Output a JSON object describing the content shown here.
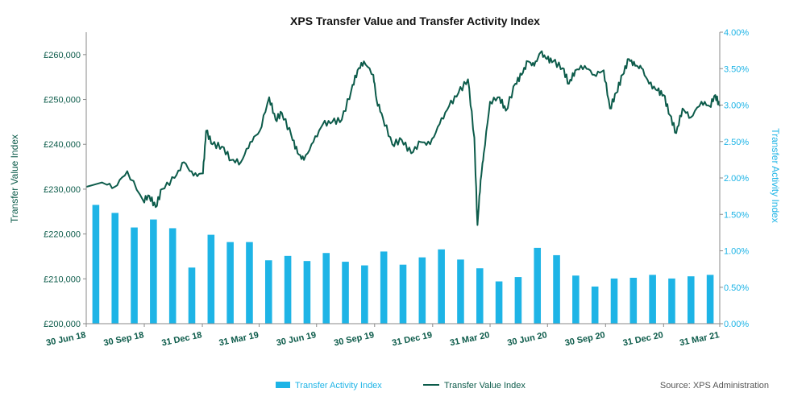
{
  "chart_data": {
    "type": "bar+line",
    "title": "XPS Transfer Value and Transfer Activity Index",
    "left_axis": {
      "label": "Transfer Value Index",
      "ylim": [
        200000,
        265000
      ],
      "ticks": [
        200000,
        210000,
        220000,
        230000,
        240000,
        250000,
        260000
      ],
      "tick_labels": [
        "£200,000",
        "£210,000",
        "£220,000",
        "£230,000",
        "£240,000",
        "£250,000",
        "£260,000"
      ]
    },
    "right_axis": {
      "label": "Transfer Activity Index",
      "ylim": [
        0.0,
        4.0
      ],
      "ticks": [
        0.0,
        0.5,
        1.0,
        1.5,
        2.0,
        2.5,
        3.0,
        3.5,
        4.0
      ],
      "tick_labels": [
        "0.00%",
        "0.50%",
        "1.00%",
        "1.50%",
        "2.00%",
        "2.50%",
        "3.00%",
        "3.50%",
        "4.00%"
      ]
    },
    "x_axis": {
      "range": [
        0,
        1004
      ],
      "ticks": [
        0,
        92,
        184,
        274,
        365,
        457,
        549,
        640,
        731,
        823,
        915,
        1004
      ],
      "tick_labels": [
        "30 Jun 18",
        "30 Sep 18",
        "31 Dec 18",
        "31 Mar 19",
        "30 Jun 19",
        "30 Sep 19",
        "31 Dec 19",
        "31 Mar 20",
        "30 Jun 20",
        "30 Sep 20",
        "31 Dec 20",
        "31 Mar 21"
      ]
    },
    "bar_series": {
      "name": "Transfer Activity Index",
      "color": "#1eb4e6",
      "values": [
        1.63,
        1.52,
        1.32,
        1.43,
        1.31,
        0.77,
        1.22,
        1.12,
        1.12,
        0.87,
        0.93,
        0.86,
        0.97,
        0.85,
        0.8,
        0.99,
        0.81,
        0.91,
        1.02,
        0.88,
        0.76,
        0.58,
        0.64,
        1.04,
        0.94,
        0.66,
        0.51,
        0.62,
        0.63,
        0.67,
        0.62,
        0.65,
        0.67
      ]
    },
    "line_series": {
      "name": "Transfer Value Index",
      "color": "#0c5b4a",
      "points": [
        [
          0,
          230500
        ],
        [
          25,
          231500
        ],
        [
          45,
          230500
        ],
        [
          65,
          234000
        ],
        [
          90,
          227500
        ],
        [
          100,
          228500
        ],
        [
          110,
          226000
        ],
        [
          120,
          230000
        ],
        [
          140,
          232500
        ],
        [
          155,
          236000
        ],
        [
          170,
          233000
        ],
        [
          185,
          233500
        ],
        [
          190,
          243000
        ],
        [
          200,
          240000
        ],
        [
          215,
          239500
        ],
        [
          230,
          236500
        ],
        [
          245,
          236000
        ],
        [
          260,
          240500
        ],
        [
          275,
          243000
        ],
        [
          290,
          250500
        ],
        [
          300,
          245500
        ],
        [
          310,
          247000
        ],
        [
          325,
          242000
        ],
        [
          335,
          238000
        ],
        [
          345,
          236500
        ],
        [
          360,
          240500
        ],
        [
          375,
          244500
        ],
        [
          390,
          245000
        ],
        [
          405,
          245500
        ],
        [
          420,
          252000
        ],
        [
          430,
          256500
        ],
        [
          440,
          258500
        ],
        [
          455,
          255500
        ],
        [
          460,
          250000
        ],
        [
          470,
          246000
        ],
        [
          485,
          240000
        ],
        [
          500,
          241000
        ],
        [
          515,
          238000
        ],
        [
          530,
          240500
        ],
        [
          545,
          240000
        ],
        [
          560,
          244500
        ],
        [
          575,
          248500
        ],
        [
          590,
          251500
        ],
        [
          605,
          254500
        ],
        [
          615,
          241500
        ],
        [
          620,
          222000
        ],
        [
          625,
          232000
        ],
        [
          630,
          238000
        ],
        [
          640,
          249500
        ],
        [
          655,
          250500
        ],
        [
          665,
          247500
        ],
        [
          680,
          253500
        ],
        [
          690,
          255500
        ],
        [
          700,
          258500
        ],
        [
          710,
          257500
        ],
        [
          720,
          260500
        ],
        [
          730,
          259000
        ],
        [
          740,
          258500
        ],
        [
          755,
          257000
        ],
        [
          765,
          253500
        ],
        [
          775,
          256500
        ],
        [
          790,
          257500
        ],
        [
          805,
          255500
        ],
        [
          820,
          256500
        ],
        [
          830,
          248000
        ],
        [
          840,
          251500
        ],
        [
          850,
          255500
        ],
        [
          860,
          259000
        ],
        [
          870,
          257500
        ],
        [
          880,
          257000
        ],
        [
          892,
          253500
        ],
        [
          905,
          252000
        ],
        [
          915,
          251000
        ],
        [
          925,
          246500
        ],
        [
          935,
          242500
        ],
        [
          945,
          248000
        ],
        [
          958,
          246000
        ],
        [
          975,
          249500
        ],
        [
          988,
          248500
        ],
        [
          997,
          251000
        ],
        [
          1004,
          248500
        ]
      ]
    },
    "legend": {
      "position": "bottom",
      "entries": [
        "Transfer Activity Index",
        "Transfer Value Index"
      ]
    },
    "source": "Source: XPS Administration"
  }
}
